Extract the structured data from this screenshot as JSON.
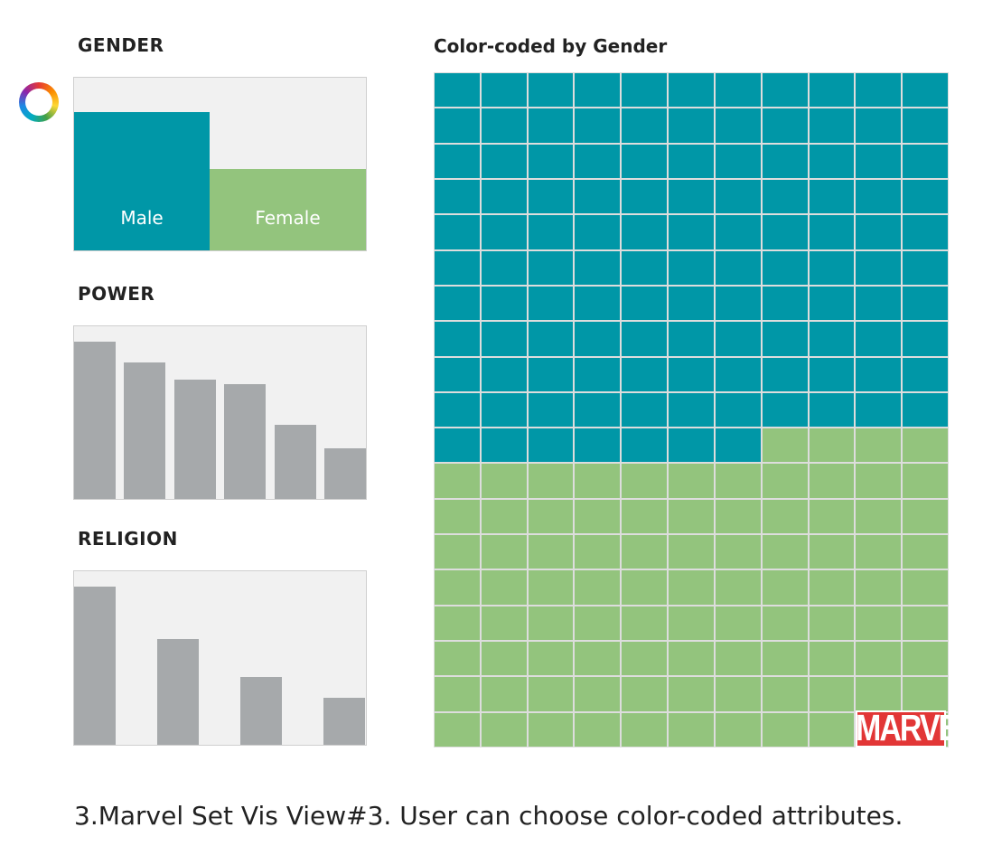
{
  "colors": {
    "male": "#0097a7",
    "female": "#93c47d",
    "bar": "#a6a9ab"
  },
  "gender": {
    "title": "GENDER"
  },
  "power": {
    "title": "POWER"
  },
  "religion": {
    "title": "RELIGION"
  },
  "grid_title": "Color-coded by Gender",
  "logo_text": "MARVEL",
  "caption": "3.Marvel Set Vis View#3. User can choose color-coded attributes.",
  "chart_data": [
    {
      "type": "bar",
      "title": "GENDER",
      "categories": [
        "Male",
        "Female"
      ],
      "values": [
        100,
        59
      ]
    },
    {
      "type": "bar",
      "title": "POWER",
      "categories": [
        "",
        "",
        "",
        "",
        "",
        ""
      ],
      "values": [
        100,
        87,
        76,
        73,
        47,
        32
      ]
    },
    {
      "type": "bar",
      "title": "RELIGION",
      "categories": [
        "",
        "",
        "",
        ""
      ],
      "values": [
        100,
        67,
        43,
        30
      ]
    },
    {
      "type": "table",
      "title": "Color-coded by Gender",
      "columns": 11,
      "rows": 19,
      "male_cells": 117,
      "female_cells": 92
    }
  ]
}
